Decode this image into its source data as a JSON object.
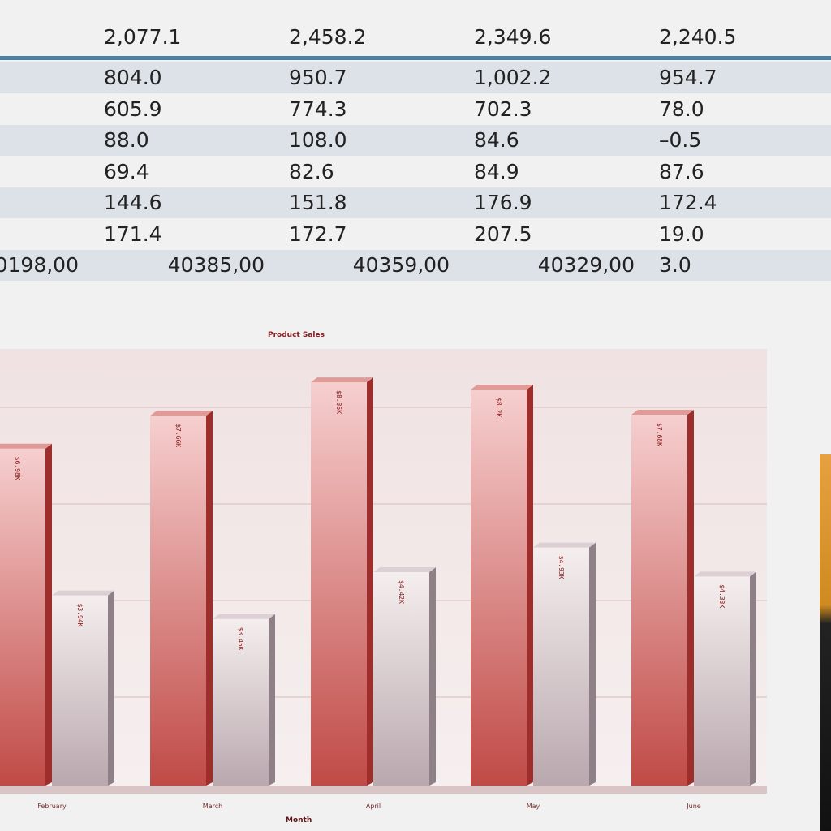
{
  "table": {
    "header_row": [
      "2,077.1",
      "2,458.2",
      "2,349.6",
      "2,240.5"
    ],
    "rows": [
      [
        "804.0",
        "950.7",
        "1,002.2",
        "954.7"
      ],
      [
        "605.9",
        "774.3",
        "702.3",
        "78.0"
      ],
      [
        "88.0",
        "108.0",
        "84.6",
        "–0.5"
      ],
      [
        "69.4",
        "82.6",
        "84.9",
        "87.6"
      ],
      [
        "144.6",
        "151.8",
        "176.9",
        "172.4"
      ],
      [
        "171.4",
        "172.7",
        "207.5",
        "19.0"
      ]
    ],
    "last_row": [
      "0198,00",
      "40385,00",
      "40359,00",
      "40329,00",
      "3.0"
    ],
    "colors": {
      "rule": "#4b82a3",
      "shade": "#dde2e8"
    }
  },
  "chart_data": {
    "type": "bar",
    "title": "Product Sales",
    "xlabel": "Month",
    "ylabel": "",
    "categories": [
      "February",
      "March",
      "April",
      "May",
      "June"
    ],
    "series": [
      {
        "values": [
          6.98,
          7.66,
          8.35,
          8.2,
          7.68
        ],
        "labels": [
          "$6.98K",
          "$7.66K",
          "$8.35K",
          "$8.2K",
          "$7.68K"
        ],
        "color": "#c9504c"
      },
      {
        "values": [
          3.94,
          3.45,
          4.42,
          4.93,
          4.33
        ],
        "labels": [
          "$3.94K",
          "$3.45K",
          "$4.42K",
          "$4.93K",
          "$4.33K"
        ],
        "color": "#e6dde0"
      }
    ],
    "units": "thousand $",
    "grid": true,
    "style": "3d"
  }
}
